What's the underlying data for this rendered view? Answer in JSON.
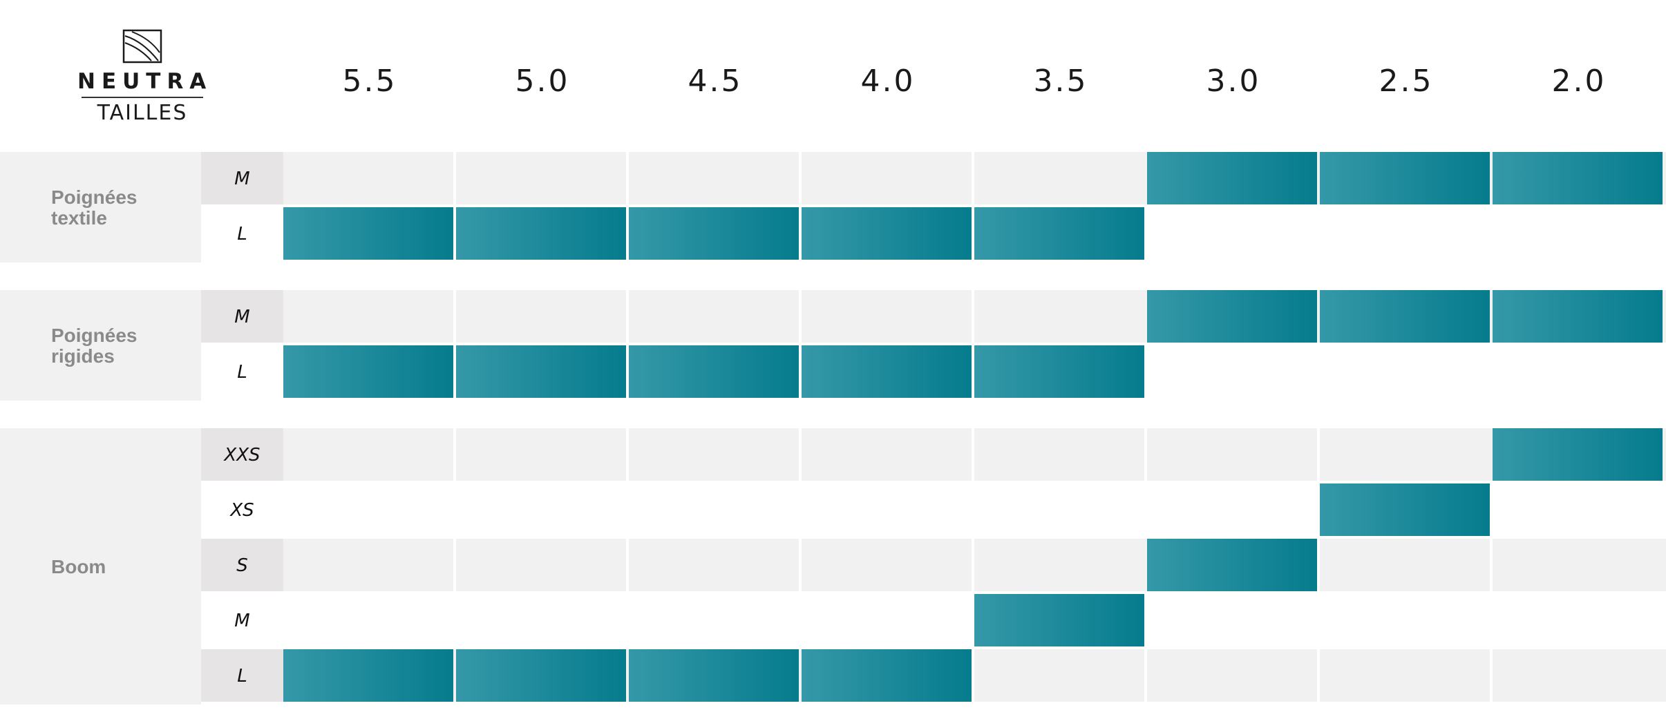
{
  "brand": {
    "name": "NEUTRA",
    "subtitle": "TAILLES"
  },
  "colors": {
    "bar_start": "#3598a8",
    "bar_end": "#057c8d",
    "row_alt": "#f1f1f1",
    "size_cell": "#e6e4e4"
  },
  "chart_data": {
    "type": "table",
    "columns": [
      "5.5",
      "5.0",
      "4.5",
      "4.0",
      "3.5",
      "3.0",
      "2.5",
      "2.0"
    ],
    "groups": [
      {
        "name": "Poignées textile",
        "name_lines": [
          "Poignées",
          "textile"
        ],
        "rows": [
          {
            "size": "M",
            "filled": [
              false,
              false,
              false,
              false,
              false,
              true,
              true,
              true
            ]
          },
          {
            "size": "L",
            "filled": [
              true,
              true,
              true,
              true,
              true,
              false,
              false,
              false
            ]
          }
        ]
      },
      {
        "name": "Poignées rigides",
        "name_lines": [
          "Poignées",
          "rigides"
        ],
        "rows": [
          {
            "size": "M",
            "filled": [
              false,
              false,
              false,
              false,
              false,
              true,
              true,
              true
            ]
          },
          {
            "size": "L",
            "filled": [
              true,
              true,
              true,
              true,
              true,
              false,
              false,
              false
            ]
          }
        ]
      },
      {
        "name": "Boom",
        "name_lines": [
          "Boom"
        ],
        "rows": [
          {
            "size": "XXS",
            "filled": [
              false,
              false,
              false,
              false,
              false,
              false,
              false,
              true
            ]
          },
          {
            "size": "XS",
            "filled": [
              false,
              false,
              false,
              false,
              false,
              false,
              true,
              false
            ]
          },
          {
            "size": "S",
            "filled": [
              false,
              false,
              false,
              false,
              false,
              true,
              false,
              false
            ]
          },
          {
            "size": "M",
            "filled": [
              false,
              false,
              false,
              false,
              true,
              false,
              false,
              false
            ]
          },
          {
            "size": "L",
            "filled": [
              true,
              true,
              true,
              true,
              false,
              false,
              false,
              false
            ]
          }
        ]
      }
    ]
  }
}
